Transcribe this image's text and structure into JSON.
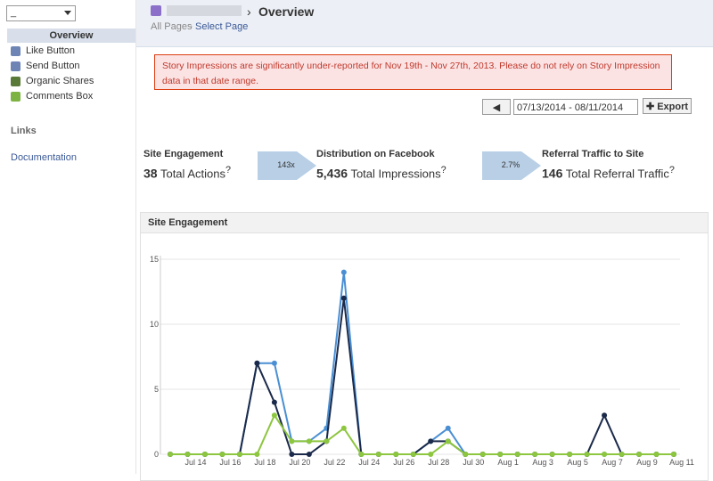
{
  "sidebar": {
    "select": "_",
    "nav": [
      "Overview",
      "Like Button",
      "Send Button",
      "Organic Shares",
      "Comments Box"
    ],
    "links_title": "Links",
    "links": [
      "Documentation"
    ]
  },
  "header": {
    "title": "Overview",
    "breadcrumb": [
      "All Pages",
      "Select Page"
    ]
  },
  "alert": "Story Impressions are significantly under-reported for Nov 19th - Nov 27th, 2013. Please do not rely on Story Impression data in that date range.",
  "controls": {
    "date_range": "07/13/2014 - 08/11/2014",
    "export": "Export"
  },
  "metrics": [
    {
      "title": "Site Engagement",
      "value": "38",
      "label": "Total Actions"
    },
    {
      "title": "Distribution on Facebook",
      "value": "5,436",
      "label": "Total Impressions"
    },
    {
      "title": "Referral Traffic to Site",
      "value": "146",
      "label": "Total Referral Traffic"
    }
  ],
  "ratios": [
    "143x",
    "2.7%"
  ],
  "chart_data": {
    "type": "line",
    "title": "Site Engagement",
    "categories": [
      null,
      "Jul 14",
      null,
      "Jul 16",
      null,
      "Jul 18",
      null,
      "Jul 20",
      null,
      "Jul 22",
      null,
      "Jul 24",
      null,
      "Jul 26",
      null,
      "Jul 28",
      null,
      "Jul 30",
      null,
      "Aug 1",
      null,
      "Aug 3",
      null,
      "Aug 5",
      null,
      "Aug 7",
      null,
      "Aug 9",
      null,
      "Aug 11"
    ],
    "series": [
      {
        "color": "#4a8fd4",
        "values": [
          0,
          0,
          0,
          0,
          0,
          7,
          7,
          1,
          1,
          2,
          14,
          0,
          0,
          0,
          0,
          1,
          2,
          0,
          0,
          0,
          0,
          0,
          0,
          0,
          0,
          0,
          0,
          0,
          0,
          0
        ]
      },
      {
        "color": "#1b2a4a",
        "values": [
          0,
          0,
          0,
          0,
          0,
          7,
          4,
          0,
          0,
          1,
          12,
          0,
          0,
          0,
          0,
          1,
          1,
          0,
          0,
          0,
          0,
          0,
          0,
          0,
          0,
          3,
          0,
          0,
          0,
          0
        ]
      },
      {
        "color": "#8dc63f",
        "values": [
          0,
          0,
          0,
          0,
          0,
          0,
          3,
          1,
          1,
          1,
          2,
          0,
          0,
          0,
          0,
          0,
          1,
          0,
          0,
          0,
          0,
          0,
          0,
          0,
          0,
          0,
          0,
          0,
          0,
          0
        ]
      }
    ],
    "ylim": [
      0,
      15
    ],
    "yticks": [
      0,
      5,
      10,
      15
    ],
    "grid": true
  }
}
